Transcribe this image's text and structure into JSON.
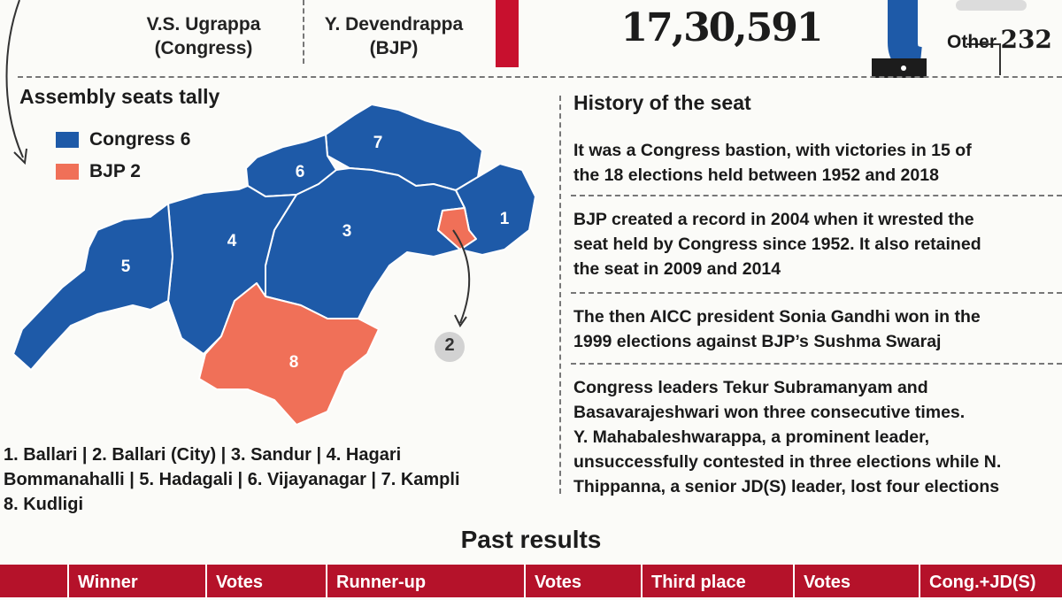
{
  "colors": {
    "congress": "#1e5aa8",
    "bjp": "#f07058",
    "accent_red": "#c8102e",
    "table_header": "#b5122a"
  },
  "candidates": [
    {
      "name": "V.S. Ugrappa",
      "party": "(Congress)"
    },
    {
      "name": "Y. Devendrappa",
      "party": "(BJP)"
    }
  ],
  "votes": {
    "total": "17,30,591",
    "other_label": "Other",
    "other_value": "232"
  },
  "assembly": {
    "title": "Assembly seats tally",
    "legend": [
      {
        "label": "Congress 6",
        "color": "#1e5aa8"
      },
      {
        "label": "BJP 2",
        "color": "#f07058"
      }
    ],
    "regions": [
      {
        "id": "1",
        "party": "Congress"
      },
      {
        "id": "2",
        "party": "BJP"
      },
      {
        "id": "3",
        "party": "Congress"
      },
      {
        "id": "4",
        "party": "Congress"
      },
      {
        "id": "5",
        "party": "Congress"
      },
      {
        "id": "6",
        "party": "Congress"
      },
      {
        "id": "7",
        "party": "Congress"
      },
      {
        "id": "8",
        "party": "BJP"
      }
    ],
    "callout": "2",
    "seat_list": [
      "1. Ballari | 2. Ballari (City) | 3. Sandur | 4. Hagari",
      "Bommanahalli | 5. Hadagali | 6. Vijayanagar | 7. Kampli",
      "8. Kudligi"
    ]
  },
  "history": {
    "title": "History of the seat",
    "paragraphs": [
      [
        "It was a Congress bastion, with victories in 15 of",
        "the 18 elections held between 1952 and 2018"
      ],
      [
        "BJP created a record in 2004 when it wrested the",
        "seat held by Congress since 1952. It also retained",
        "the seat in 2009 and 2014"
      ],
      [
        "The then AICC president Sonia Gandhi won in the",
        "1999 elections against BJP’s  Sushma Swaraj"
      ],
      [
        "Congress leaders Tekur Subramanyam and",
        "Basavarajeshwari won three consecutive times.",
        "Y. Mahabaleshwarappa, a prominent leader,",
        "unsuccessfully contested in three elections while N.",
        "Thippanna, a senior JD(S) leader, lost four elections"
      ]
    ]
  },
  "past_results": {
    "title": "Past results",
    "columns": [
      "Winner",
      "Votes",
      "Runner-up",
      "Votes",
      "Third place",
      "Votes",
      "Cong.+JD(S)"
    ]
  }
}
